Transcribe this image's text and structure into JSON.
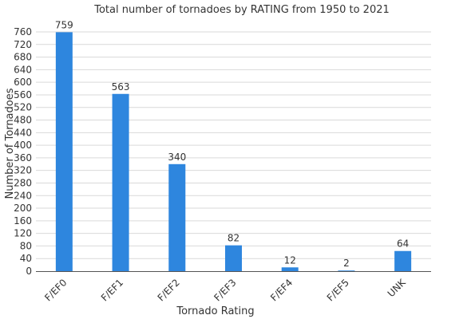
{
  "chart_data": {
    "type": "bar",
    "title": "Total number of tornadoes by RATING from 1950 to 2021",
    "xlabel": "Tornado Rating",
    "ylabel": "Number of Tornadoes",
    "categories": [
      "F/EF0",
      "F/EF1",
      "F/EF2",
      "F/EF3",
      "F/EF4",
      "F/EF5",
      "UNK"
    ],
    "values": [
      759,
      563,
      340,
      82,
      12,
      2,
      64
    ],
    "ylim": [
      0,
      760
    ],
    "yticks": [
      0,
      40,
      80,
      120,
      160,
      200,
      240,
      280,
      320,
      360,
      400,
      440,
      480,
      520,
      560,
      600,
      640,
      680,
      720,
      760
    ],
    "grid": true,
    "legend": "none",
    "bar_color": "#2e86de"
  }
}
